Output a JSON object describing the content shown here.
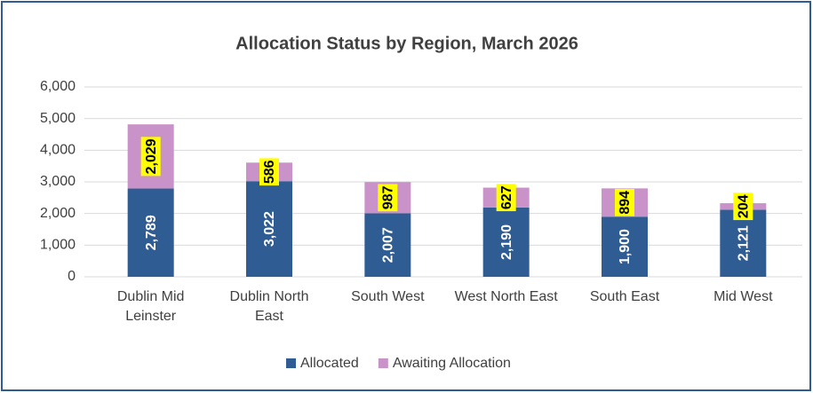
{
  "chart_data": {
    "type": "stacked_bar",
    "title": "Allocation Status by Region, March 2026",
    "categories": [
      "Dublin Mid Leinster",
      "Dublin North East",
      "South West",
      "West North East",
      "South East",
      "Mid West"
    ],
    "series": [
      {
        "name": "Allocated",
        "color": "#2f5d93",
        "values": [
          2789,
          3022,
          2007,
          2190,
          1900,
          2121
        ],
        "value_labels": [
          "2,789",
          "3,022",
          "2,007",
          "2,190",
          "1,900",
          "2,121"
        ]
      },
      {
        "name": "Awaiting Allocation",
        "color": "#c993c9",
        "values": [
          2029,
          586,
          987,
          627,
          894,
          204
        ],
        "value_labels": [
          "2,029",
          "586",
          "987",
          "627",
          "894",
          "204"
        ]
      }
    ],
    "ylim": [
      0,
      6000
    ],
    "yticks": [
      0,
      {
        "value": 1000,
        "label": "1,000"
      },
      {
        "value": 2000,
        "label": "2,000"
      },
      {
        "value": 3000,
        "label": "3,000"
      },
      {
        "value": 4000,
        "label": "4,000"
      },
      {
        "value": 5000,
        "label": "5,000"
      },
      {
        "value": 6000,
        "label": "6,000"
      }
    ],
    "grid": true,
    "legend": "bottom"
  }
}
